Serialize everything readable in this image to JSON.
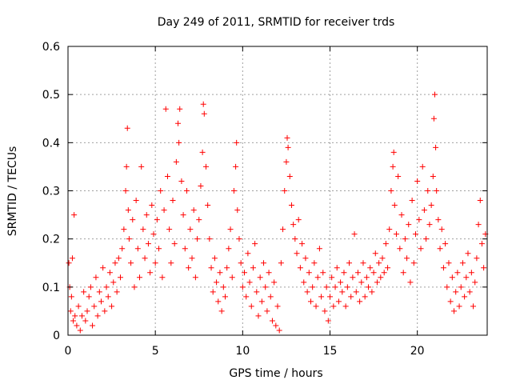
{
  "chart_data": {
    "type": "scatter",
    "title": "Day 249 of 2011, SRMTID for receiver trds",
    "xlabel": "GPS time / hours",
    "ylabel": "SRMTID / TECUs",
    "xlim": [
      0,
      24
    ],
    "ylim": [
      0,
      0.6
    ],
    "xticks": [
      0,
      5,
      10,
      15,
      20
    ],
    "xtick_labels": [
      "0",
      "5",
      "10",
      "15",
      "20"
    ],
    "yticks": [
      0,
      0.1,
      0.2,
      0.3,
      0.4,
      0.5,
      0.6
    ],
    "ytick_labels": [
      "0",
      "0.1",
      "0.2",
      "0.3",
      "0.4",
      "0.5",
      "0.6"
    ],
    "grid": true,
    "marker": "+",
    "series": [
      {
        "name": "SRMTID",
        "color": "#ff0000",
        "points": [
          [
            0.05,
            0.15
          ],
          [
            0.1,
            0.1
          ],
          [
            0.15,
            0.05
          ],
          [
            0.2,
            0.08
          ],
          [
            0.25,
            0.16
          ],
          [
            0.3,
            0.03
          ],
          [
            0.35,
            0.25
          ],
          [
            0.4,
            0.04
          ],
          [
            0.5,
            0.02
          ],
          [
            0.6,
            0.06
          ],
          [
            0.7,
            0.01
          ],
          [
            0.8,
            0.04
          ],
          [
            0.9,
            0.09
          ],
          [
            1.0,
            0.03
          ],
          [
            1.1,
            0.05
          ],
          [
            1.2,
            0.08
          ],
          [
            1.3,
            0.1
          ],
          [
            1.4,
            0.02
          ],
          [
            1.5,
            0.06
          ],
          [
            1.6,
            0.12
          ],
          [
            1.7,
            0.04
          ],
          [
            1.8,
            0.09
          ],
          [
            1.9,
            0.07
          ],
          [
            2.0,
            0.14
          ],
          [
            2.1,
            0.05
          ],
          [
            2.2,
            0.1
          ],
          [
            2.3,
            0.08
          ],
          [
            2.4,
            0.13
          ],
          [
            2.5,
            0.06
          ],
          [
            2.6,
            0.11
          ],
          [
            2.7,
            0.15
          ],
          [
            2.8,
            0.09
          ],
          [
            2.9,
            0.16
          ],
          [
            3.0,
            0.12
          ],
          [
            3.1,
            0.18
          ],
          [
            3.2,
            0.22
          ],
          [
            3.3,
            0.3
          ],
          [
            3.35,
            0.35
          ],
          [
            3.4,
            0.43
          ],
          [
            3.45,
            0.26
          ],
          [
            3.5,
            0.2
          ],
          [
            3.6,
            0.15
          ],
          [
            3.7,
            0.24
          ],
          [
            3.8,
            0.1
          ],
          [
            3.9,
            0.28
          ],
          [
            4.0,
            0.18
          ],
          [
            4.1,
            0.12
          ],
          [
            4.2,
            0.35
          ],
          [
            4.3,
            0.22
          ],
          [
            4.4,
            0.16
          ],
          [
            4.5,
            0.25
          ],
          [
            4.6,
            0.19
          ],
          [
            4.7,
            0.13
          ],
          [
            4.8,
            0.27
          ],
          [
            4.9,
            0.21
          ],
          [
            5.0,
            0.15
          ],
          [
            5.1,
            0.24
          ],
          [
            5.2,
            0.18
          ],
          [
            5.3,
            0.3
          ],
          [
            5.4,
            0.12
          ],
          [
            5.5,
            0.26
          ],
          [
            5.6,
            0.47
          ],
          [
            5.7,
            0.33
          ],
          [
            5.8,
            0.22
          ],
          [
            5.9,
            0.15
          ],
          [
            6.0,
            0.28
          ],
          [
            6.1,
            0.19
          ],
          [
            6.2,
            0.36
          ],
          [
            6.3,
            0.44
          ],
          [
            6.35,
            0.4
          ],
          [
            6.4,
            0.47
          ],
          [
            6.5,
            0.32
          ],
          [
            6.6,
            0.25
          ],
          [
            6.7,
            0.18
          ],
          [
            6.8,
            0.3
          ],
          [
            6.9,
            0.14
          ],
          [
            7.0,
            0.22
          ],
          [
            7.1,
            0.16
          ],
          [
            7.2,
            0.26
          ],
          [
            7.3,
            0.12
          ],
          [
            7.4,
            0.2
          ],
          [
            7.5,
            0.24
          ],
          [
            7.6,
            0.31
          ],
          [
            7.7,
            0.38
          ],
          [
            7.75,
            0.48
          ],
          [
            7.8,
            0.46
          ],
          [
            7.9,
            0.35
          ],
          [
            8.0,
            0.27
          ],
          [
            8.1,
            0.2
          ],
          [
            8.2,
            0.14
          ],
          [
            8.3,
            0.09
          ],
          [
            8.4,
            0.16
          ],
          [
            8.5,
            0.11
          ],
          [
            8.6,
            0.07
          ],
          [
            8.7,
            0.13
          ],
          [
            8.8,
            0.05
          ],
          [
            8.9,
            0.1
          ],
          [
            9.0,
            0.08
          ],
          [
            9.1,
            0.14
          ],
          [
            9.2,
            0.18
          ],
          [
            9.3,
            0.22
          ],
          [
            9.4,
            0.12
          ],
          [
            9.5,
            0.3
          ],
          [
            9.6,
            0.35
          ],
          [
            9.65,
            0.4
          ],
          [
            9.7,
            0.26
          ],
          [
            9.8,
            0.2
          ],
          [
            9.9,
            0.15
          ],
          [
            10.0,
            0.1
          ],
          [
            10.1,
            0.13
          ],
          [
            10.2,
            0.08
          ],
          [
            10.3,
            0.17
          ],
          [
            10.4,
            0.11
          ],
          [
            10.5,
            0.06
          ],
          [
            10.6,
            0.14
          ],
          [
            10.7,
            0.19
          ],
          [
            10.8,
            0.09
          ],
          [
            10.9,
            0.04
          ],
          [
            11.0,
            0.12
          ],
          [
            11.1,
            0.07
          ],
          [
            11.2,
            0.15
          ],
          [
            11.3,
            0.1
          ],
          [
            11.4,
            0.05
          ],
          [
            11.5,
            0.13
          ],
          [
            11.6,
            0.08
          ],
          [
            11.7,
            0.03
          ],
          [
            11.8,
            0.11
          ],
          [
            11.9,
            0.02
          ],
          [
            12.0,
            0.06
          ],
          [
            12.1,
            0.01
          ],
          [
            12.2,
            0.15
          ],
          [
            12.3,
            0.22
          ],
          [
            12.4,
            0.3
          ],
          [
            12.5,
            0.36
          ],
          [
            12.55,
            0.41
          ],
          [
            12.6,
            0.39
          ],
          [
            12.7,
            0.33
          ],
          [
            12.8,
            0.27
          ],
          [
            12.9,
            0.23
          ],
          [
            13.0,
            0.2
          ],
          [
            13.1,
            0.17
          ],
          [
            13.2,
            0.24
          ],
          [
            13.3,
            0.14
          ],
          [
            13.4,
            0.19
          ],
          [
            13.5,
            0.11
          ],
          [
            13.6,
            0.16
          ],
          [
            13.7,
            0.09
          ],
          [
            13.8,
            0.13
          ],
          [
            13.9,
            0.07
          ],
          [
            14.0,
            0.1
          ],
          [
            14.1,
            0.15
          ],
          [
            14.2,
            0.06
          ],
          [
            14.3,
            0.12
          ],
          [
            14.4,
            0.18
          ],
          [
            14.5,
            0.08
          ],
          [
            14.6,
            0.13
          ],
          [
            14.7,
            0.05
          ],
          [
            14.8,
            0.1
          ],
          [
            14.9,
            0.03
          ],
          [
            15.0,
            0.08
          ],
          [
            15.1,
            0.12
          ],
          [
            15.2,
            0.06
          ],
          [
            15.3,
            0.1
          ],
          [
            15.4,
            0.14
          ],
          [
            15.5,
            0.07
          ],
          [
            15.6,
            0.11
          ],
          [
            15.7,
            0.09
          ],
          [
            15.8,
            0.13
          ],
          [
            15.9,
            0.06
          ],
          [
            16.0,
            0.1
          ],
          [
            16.1,
            0.15
          ],
          [
            16.2,
            0.08
          ],
          [
            16.3,
            0.12
          ],
          [
            16.4,
            0.21
          ],
          [
            16.5,
            0.09
          ],
          [
            16.6,
            0.13
          ],
          [
            16.7,
            0.07
          ],
          [
            16.8,
            0.11
          ],
          [
            16.9,
            0.15
          ],
          [
            17.0,
            0.08
          ],
          [
            17.1,
            0.12
          ],
          [
            17.2,
            0.1
          ],
          [
            17.3,
            0.14
          ],
          [
            17.4,
            0.09
          ],
          [
            17.5,
            0.13
          ],
          [
            17.6,
            0.17
          ],
          [
            17.7,
            0.11
          ],
          [
            17.8,
            0.15
          ],
          [
            17.9,
            0.12
          ],
          [
            18.0,
            0.16
          ],
          [
            18.1,
            0.13
          ],
          [
            18.2,
            0.19
          ],
          [
            18.3,
            0.14
          ],
          [
            18.4,
            0.22
          ],
          [
            18.5,
            0.3
          ],
          [
            18.6,
            0.35
          ],
          [
            18.65,
            0.38
          ],
          [
            18.7,
            0.27
          ],
          [
            18.8,
            0.21
          ],
          [
            18.9,
            0.33
          ],
          [
            19.0,
            0.18
          ],
          [
            19.1,
            0.25
          ],
          [
            19.2,
            0.13
          ],
          [
            19.3,
            0.2
          ],
          [
            19.4,
            0.16
          ],
          [
            19.5,
            0.23
          ],
          [
            19.6,
            0.11
          ],
          [
            19.7,
            0.28
          ],
          [
            19.8,
            0.15
          ],
          [
            19.9,
            0.21
          ],
          [
            20.0,
            0.32
          ],
          [
            20.1,
            0.24
          ],
          [
            20.2,
            0.18
          ],
          [
            20.3,
            0.35
          ],
          [
            20.4,
            0.26
          ],
          [
            20.5,
            0.2
          ],
          [
            20.6,
            0.3
          ],
          [
            20.7,
            0.23
          ],
          [
            20.8,
            0.27
          ],
          [
            20.9,
            0.33
          ],
          [
            20.95,
            0.45
          ],
          [
            21.0,
            0.5
          ],
          [
            21.05,
            0.39
          ],
          [
            21.1,
            0.3
          ],
          [
            21.2,
            0.24
          ],
          [
            21.3,
            0.18
          ],
          [
            21.4,
            0.22
          ],
          [
            21.5,
            0.14
          ],
          [
            21.6,
            0.19
          ],
          [
            21.7,
            0.1
          ],
          [
            21.8,
            0.15
          ],
          [
            21.9,
            0.07
          ],
          [
            22.0,
            0.12
          ],
          [
            22.1,
            0.05
          ],
          [
            22.2,
            0.09
          ],
          [
            22.3,
            0.13
          ],
          [
            22.4,
            0.06
          ],
          [
            22.5,
            0.1
          ],
          [
            22.6,
            0.15
          ],
          [
            22.7,
            0.08
          ],
          [
            22.8,
            0.12
          ],
          [
            22.9,
            0.17
          ],
          [
            23.0,
            0.09
          ],
          [
            23.1,
            0.13
          ],
          [
            23.2,
            0.06
          ],
          [
            23.3,
            0.11
          ],
          [
            23.4,
            0.16
          ],
          [
            23.5,
            0.23
          ],
          [
            23.6,
            0.28
          ],
          [
            23.7,
            0.19
          ],
          [
            23.8,
            0.14
          ],
          [
            23.9,
            0.21
          ]
        ]
      }
    ]
  }
}
